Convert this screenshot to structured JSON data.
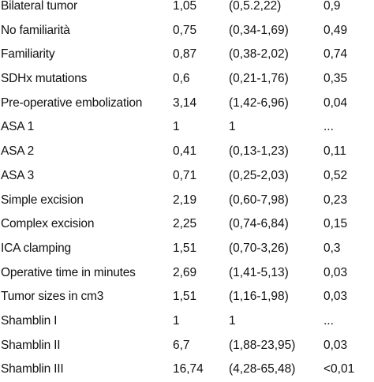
{
  "rows": [
    {
      "variable": "Bilateral tumor",
      "or": "1,05",
      "ci": "(0,5.2,22)",
      "p": "0,9"
    },
    {
      "variable": "No familiarità",
      "or": "0,75",
      "ci": "(0,34-1,69)",
      "p": "0,49"
    },
    {
      "variable": "Familiarity",
      "or": "0,87",
      "ci": "(0,38-2,02)",
      "p": "0,74"
    },
    {
      "variable": "SDHx mutations",
      "or": "0,6",
      "ci": "(0,21-1,76)",
      "p": "0,35"
    },
    {
      "variable": "Pre-operative embolization",
      "or": "3,14",
      "ci": "(1,42-6,96)",
      "p": "0,04"
    },
    {
      "variable": "ASA 1",
      "or": "1",
      "ci": "1",
      "p": "..."
    },
    {
      "variable": "ASA 2",
      "or": "0,41",
      "ci": "(0,13-1,23)",
      "p": "0,11"
    },
    {
      "variable": "ASA 3",
      "or": "0,71",
      "ci": "(0,25-2,03)",
      "p": "0,52"
    },
    {
      "variable": "Simple excision",
      "or": "2,19",
      "ci": "(0,60-7,98)",
      "p": "0,23"
    },
    {
      "variable": "Complex excision",
      "or": "2,25",
      "ci": "(0,74-6,84)",
      "p": "0,15"
    },
    {
      "variable": "ICA clamping",
      "or": "1,51",
      "ci": "(0,70-3,26)",
      "p": "0,3"
    },
    {
      "variable": "Operative time in minutes",
      "or": "2,69",
      "ci": "(1,41-5,13)",
      "p": "0,03"
    },
    {
      "variable": "Tumor sizes in cm3",
      "or": "1,51",
      "ci": "(1,16-1,98)",
      "p": "0,03"
    },
    {
      "variable": "Shamblin I",
      "or": "1",
      "ci": "1",
      "p": "..."
    },
    {
      "variable": "Shamblin II",
      "or": "6,7",
      "ci": "(1,88-23,95)",
      "p": "0,03"
    },
    {
      "variable": "Shamblin III",
      "or": "16,74",
      "ci": "(4,28-65,48)",
      "p": "<0,01"
    }
  ]
}
